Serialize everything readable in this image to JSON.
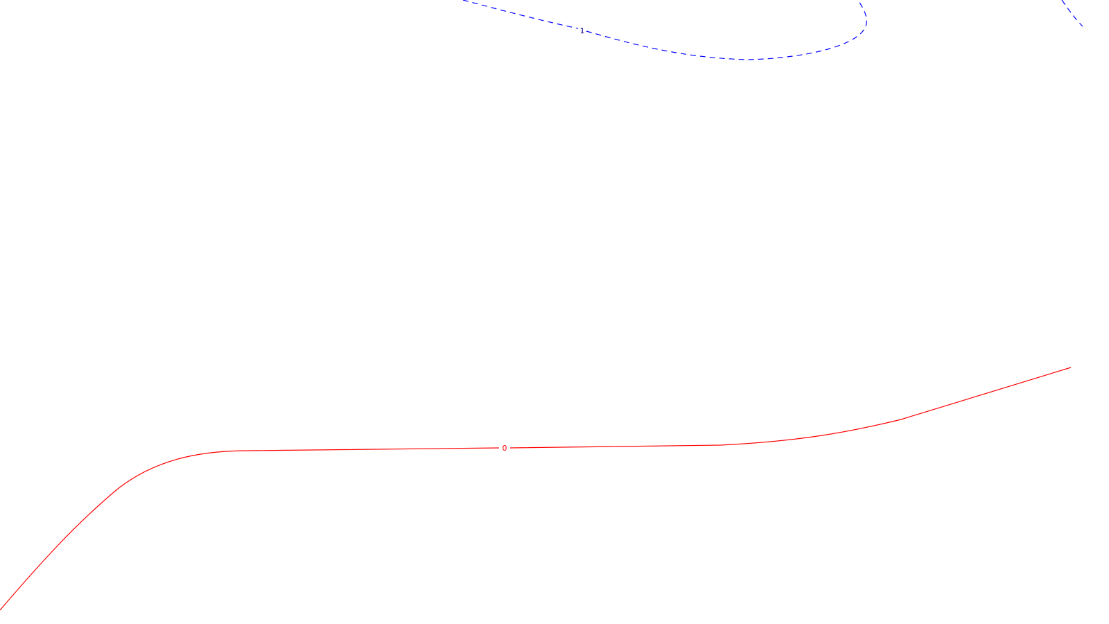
{
  "contours": [
    {
      "id": "contour-1",
      "label": "1",
      "color": "#0000ff",
      "line_style": "dashed"
    },
    {
      "id": "contour-0",
      "label": "0",
      "color": "#ff0000",
      "line_style": "solid"
    }
  ]
}
